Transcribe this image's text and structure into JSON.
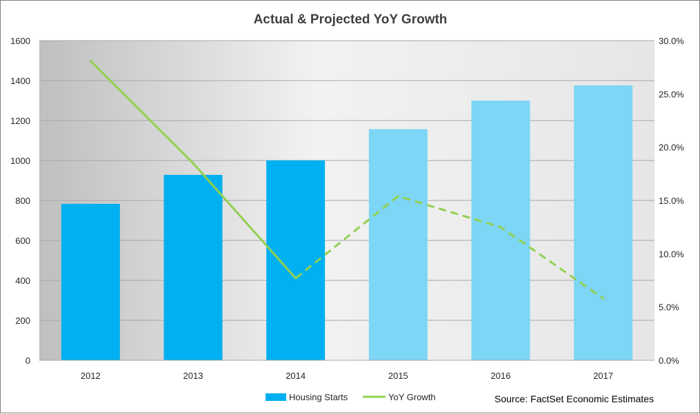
{
  "chart_data": {
    "type": "bar",
    "title": "Actual & Projected YoY Growth",
    "categories": [
      "2012",
      "2013",
      "2014",
      "2015",
      "2016",
      "2017"
    ],
    "series": [
      {
        "name": "Housing Starts",
        "type": "bar",
        "axis": "left",
        "values": [
          783,
          928,
          1001,
          1157,
          1300,
          1376
        ],
        "projected_from_index": 3,
        "color": "#00b0f0",
        "projected_color": "#7dd6f5"
      },
      {
        "name": "YoY Growth",
        "type": "line",
        "axis": "right",
        "values": [
          28.1,
          18.5,
          7.7,
          15.4,
          12.5,
          5.8
        ],
        "projected_from_index": 2,
        "color": "#92d050"
      }
    ],
    "y_left": {
      "lim": [
        0,
        1600
      ],
      "ticks": [
        "0",
        "200",
        "400",
        "600",
        "800",
        "1000",
        "1200",
        "1400",
        "1600"
      ]
    },
    "y_right": {
      "lim": [
        0,
        30
      ],
      "ticks": [
        "0.0%",
        "5.0%",
        "10.0%",
        "15.0%",
        "20.0%",
        "25.0%",
        "30.0%"
      ]
    },
    "grid": true,
    "legend": "bottom",
    "source_note": "Source: FactSet Economic Estimates"
  }
}
